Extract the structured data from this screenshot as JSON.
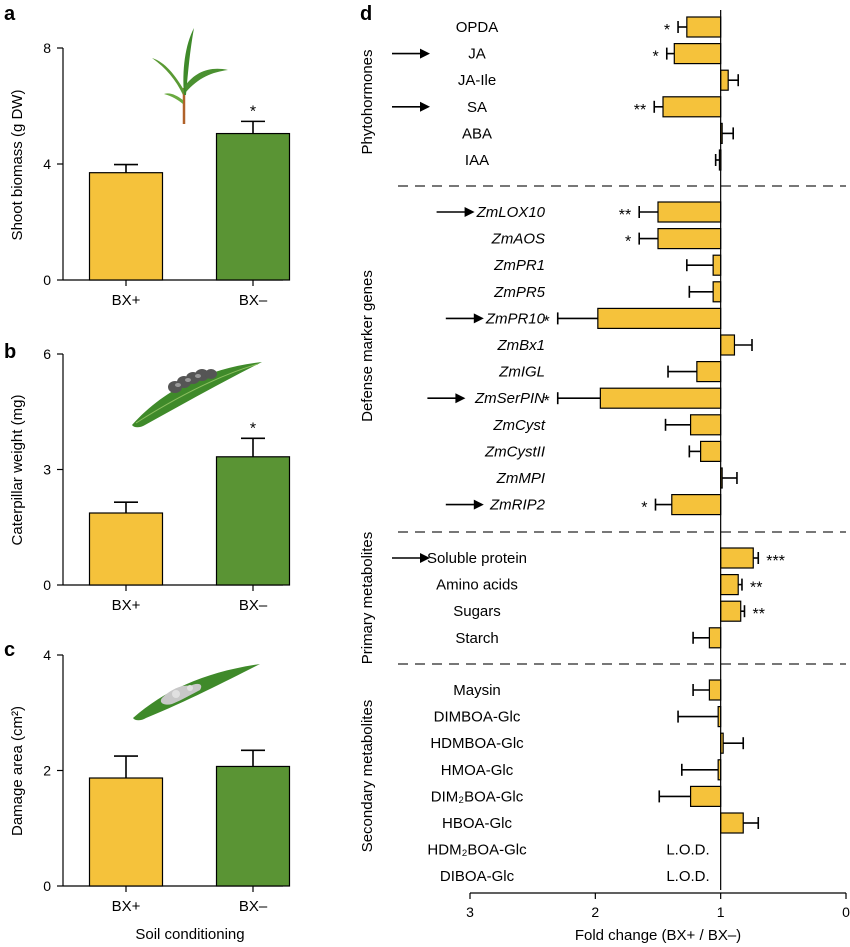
{
  "colors": {
    "bx_plus": "#f5c23b",
    "bx_minus": "#5a9434",
    "edge": "#000000",
    "separator": "#777777"
  },
  "icons": [
    "maize-seedling-icon",
    "caterpillar-on-leaf-icon",
    "damaged-leaf-icon",
    "arrow-right-icon"
  ],
  "chart_data": [
    {
      "panel": "a",
      "type": "bar",
      "categories": [
        "BX+",
        "BX–"
      ],
      "values": [
        3.7,
        5.05
      ],
      "errors": [
        0.28,
        0.42
      ],
      "significance": [
        "",
        "*"
      ],
      "ylabel": "Shoot biomass (g DW)",
      "xlabel": "",
      "ylim": [
        0,
        8
      ],
      "yticks": [
        "0",
        "4",
        "8"
      ]
    },
    {
      "panel": "b",
      "type": "bar",
      "categories": [
        "BX+",
        "BX–"
      ],
      "values": [
        1.87,
        3.33
      ],
      "errors": [
        0.28,
        0.48
      ],
      "significance": [
        "",
        "*"
      ],
      "ylabel": "Caterpillar weight (mg)",
      "xlabel": "",
      "ylim": [
        0,
        6
      ],
      "yticks": [
        "0",
        "3",
        "6"
      ]
    },
    {
      "panel": "c",
      "type": "bar",
      "categories": [
        "BX+",
        "BX–"
      ],
      "values": [
        1.87,
        2.07
      ],
      "errors": [
        0.38,
        0.28
      ],
      "significance": [
        "",
        ""
      ],
      "ylabel": "Damage area (cm²)",
      "xlabel": "Soil conditioning",
      "ylim": [
        0,
        4
      ],
      "yticks": [
        "0",
        "2",
        "4"
      ]
    },
    {
      "panel": "d",
      "type": "bar",
      "orientation": "horizontal",
      "xlabel": "Fold change (BX+ / BX–)",
      "xlim": [
        3,
        0
      ],
      "xticks": [
        "3",
        "2",
        "1",
        "0"
      ],
      "reference_value": 1,
      "groups": [
        {
          "name": "Phytohormones",
          "items": [
            {
              "label": "OPDA",
              "italic": false,
              "value": 1.27,
              "error": 0.07,
              "sig": "*",
              "arrow": false
            },
            {
              "label": "JA",
              "italic": false,
              "value": 1.37,
              "error": 0.06,
              "sig": "*",
              "arrow": true
            },
            {
              "label": "JA-Ile",
              "italic": false,
              "value": 0.94,
              "error": 0.08,
              "sig": "",
              "arrow": false
            },
            {
              "label": "SA",
              "italic": false,
              "value": 1.46,
              "error": 0.07,
              "sig": "**",
              "arrow": true
            },
            {
              "label": "ABA",
              "italic": false,
              "value": 0.99,
              "error": 0.09,
              "sig": "",
              "arrow": false
            },
            {
              "label": "IAA",
              "italic": false,
              "value": 1.01,
              "error": 0.03,
              "sig": "",
              "arrow": false
            }
          ]
        },
        {
          "name": "Defense marker genes",
          "items": [
            {
              "label": "ZmLOX10",
              "italic": true,
              "value": 1.5,
              "error": 0.15,
              "sig": "**",
              "arrow": true
            },
            {
              "label": "ZmAOS",
              "italic": true,
              "value": 1.5,
              "error": 0.15,
              "sig": "*",
              "arrow": false
            },
            {
              "label": "ZmPR1",
              "italic": true,
              "value": 1.06,
              "error": 0.21,
              "sig": "",
              "arrow": false
            },
            {
              "label": "ZmPR5",
              "italic": true,
              "value": 1.06,
              "error": 0.19,
              "sig": "",
              "arrow": false
            },
            {
              "label": "ZmPR10",
              "italic": true,
              "value": 1.98,
              "error": 0.32,
              "sig": "*",
              "arrow": true
            },
            {
              "label": "ZmBx1",
              "italic": true,
              "value": 0.89,
              "error": 0.14,
              "sig": "",
              "arrow": false
            },
            {
              "label": "ZmIGL",
              "italic": true,
              "value": 1.19,
              "error": 0.23,
              "sig": "",
              "arrow": false
            },
            {
              "label": "ZmSerPIN",
              "italic": true,
              "value": 1.96,
              "error": 0.34,
              "sig": "*",
              "arrow": true
            },
            {
              "label": "ZmCyst",
              "italic": true,
              "value": 1.24,
              "error": 0.2,
              "sig": "",
              "arrow": false
            },
            {
              "label": "ZmCystII",
              "italic": true,
              "value": 1.16,
              "error": 0.09,
              "sig": "",
              "arrow": false
            },
            {
              "label": "ZmMPI",
              "italic": true,
              "value": 0.99,
              "error": 0.12,
              "sig": "",
              "arrow": false
            },
            {
              "label": "ZmRIP2",
              "italic": true,
              "value": 1.39,
              "error": 0.13,
              "sig": "*",
              "arrow": true
            }
          ]
        },
        {
          "name": "Primary metabolites",
          "items": [
            {
              "label": "Soluble protein",
              "italic": false,
              "value": 0.74,
              "error": 0.04,
              "sig": "***",
              "arrow": true
            },
            {
              "label": "Amino acids",
              "italic": false,
              "value": 0.86,
              "error": 0.03,
              "sig": "**",
              "arrow": false
            },
            {
              "label": "Sugars",
              "italic": false,
              "value": 0.84,
              "error": 0.03,
              "sig": "**",
              "arrow": false
            },
            {
              "label": "Starch",
              "italic": false,
              "value": 1.09,
              "error": 0.13,
              "sig": "",
              "arrow": false
            }
          ]
        },
        {
          "name": "Secondary metabolites",
          "items": [
            {
              "label": "Maysin",
              "italic": false,
              "value": 1.09,
              "error": 0.13,
              "sig": "",
              "arrow": false
            },
            {
              "label": "DIMBOA-Glc",
              "italic": false,
              "value": 1.02,
              "error": 0.32,
              "sig": "",
              "arrow": false
            },
            {
              "label": "HDMBOA-Glc",
              "italic": false,
              "value": 0.98,
              "error": 0.16,
              "sig": "",
              "arrow": false
            },
            {
              "label": "HMOA-Glc",
              "italic": false,
              "value": 1.02,
              "error": 0.29,
              "sig": "",
              "arrow": false
            },
            {
              "label": "DIM₂BOA-Glc",
              "italic": false,
              "value": 1.24,
              "error": 0.25,
              "sig": "",
              "arrow": false
            },
            {
              "label": "HBOA-Glc",
              "italic": false,
              "value": 0.82,
              "error": 0.12,
              "sig": "",
              "arrow": false
            },
            {
              "label": "HDM₂BOA-Glc",
              "italic": false,
              "value": null,
              "error": null,
              "sig": "",
              "arrow": false,
              "note": "L.O.D."
            },
            {
              "label": "DIBOA-Glc",
              "italic": false,
              "value": null,
              "error": null,
              "sig": "",
              "arrow": false,
              "note": "L.O.D."
            }
          ]
        }
      ]
    }
  ]
}
